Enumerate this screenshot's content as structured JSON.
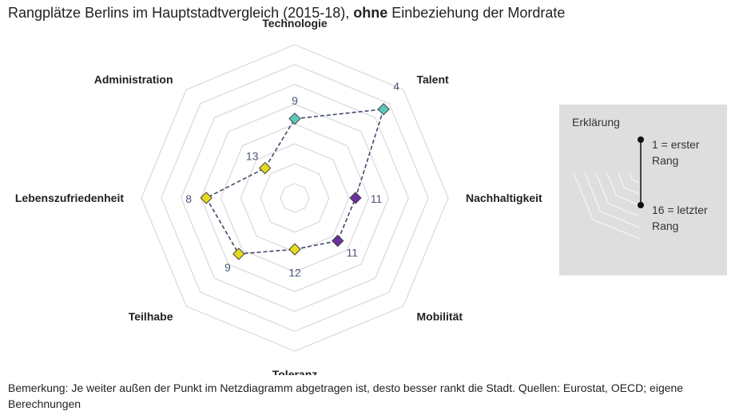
{
  "title": {
    "prefix": "Rangplätze Berlins im Hauptstadtvergleich (2015-18), ",
    "bold": "ohne",
    "suffix": " Einbeziehung der Mordrate"
  },
  "chart_data": {
    "type": "radar",
    "title": "Rangplätze Berlins im Hauptstadtvergleich (2015-18), ohne Einbeziehung der Mordrate",
    "rank_range": [
      1,
      16
    ],
    "axes": [
      "Technologie",
      "Talent",
      "Nachhaltigkeit",
      "Mobilität",
      "Toleranz",
      "Teilhabe",
      "Lebenszufriedenheit",
      "Administration"
    ],
    "ranks": [
      9,
      4,
      11,
      11,
      12,
      9,
      8,
      13
    ],
    "value_labels": [
      "9",
      "4",
      "11",
      "11",
      "12",
      "9",
      "8",
      "13"
    ],
    "point_colors": [
      "#5cc8b8",
      "#5cc8b8",
      "#6b2f9e",
      "#6b2f9e",
      "#e6dc1a",
      "#e6dc1a",
      "#e6dc1a",
      "#e6dc1a"
    ],
    "grid": true
  },
  "legend": {
    "title": "Erklärung",
    "first_line1": "1 = erster",
    "first_line2": "Rang",
    "last_line1": "16 = letzter",
    "last_line2": "Rang"
  },
  "footnote": "Bemerkung: Je weiter außen der Punkt im Netzdiagramm abgetragen ist, desto besser rankt die Stadt. Quellen: Eurostat, OECD; eigene Berechnungen",
  "colors": {
    "line": "#3d4a6b",
    "grid": "#d9d9d9",
    "legend_bg": "#dedede"
  }
}
